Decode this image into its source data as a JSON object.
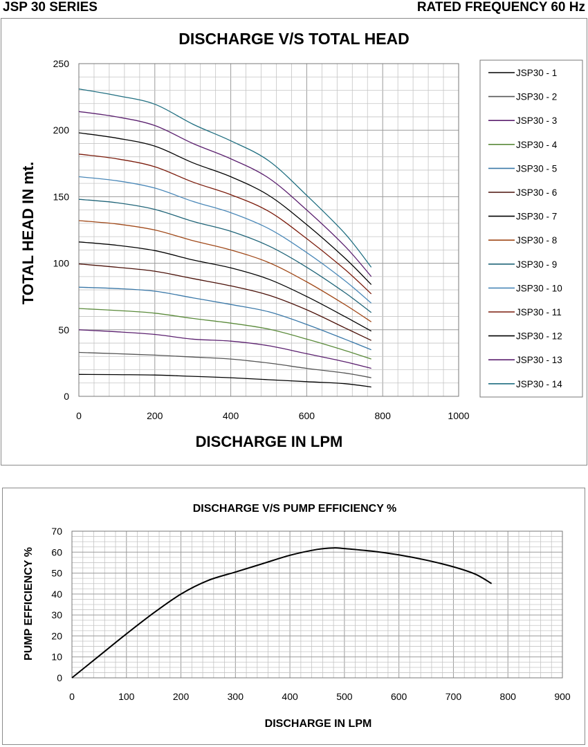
{
  "header": {
    "left": "JSP 30 SERIES",
    "right": "RATED FREQUENCY 60 Hz"
  },
  "chart_data": [
    {
      "type": "line",
      "title": "DISCHARGE V/S TOTAL HEAD",
      "xlabel": "DISCHARGE IN LPM",
      "ylabel": "TOTAL HEAD IN mt.",
      "xlim": [
        0,
        1000
      ],
      "ylim": [
        0,
        250
      ],
      "xticks": [
        0,
        200,
        400,
        600,
        800,
        1000
      ],
      "yticks": [
        0,
        50,
        100,
        150,
        200,
        250
      ],
      "grid": true,
      "legend": "right",
      "x": [
        0,
        100,
        200,
        300,
        400,
        500,
        600,
        700,
        770
      ],
      "series": [
        {
          "name": "JSP30 - 1",
          "color": "#000000",
          "values": [
            16.5,
            16.3,
            16,
            15,
            14,
            12.5,
            11,
            9.5,
            7
          ]
        },
        {
          "name": "JSP30 - 2",
          "color": "#555555",
          "values": [
            33,
            32,
            31,
            29.5,
            28,
            25,
            21,
            17.5,
            14
          ]
        },
        {
          "name": "JSP30 - 3",
          "color": "#5a1f6e",
          "values": [
            50,
            48.5,
            46.5,
            43,
            41.5,
            38,
            32,
            26,
            21
          ]
        },
        {
          "name": "JSP30 - 4",
          "color": "#5a8a3a",
          "values": [
            66,
            64.5,
            62.5,
            58.5,
            55,
            50.5,
            43,
            34.5,
            28
          ]
        },
        {
          "name": "JSP30 - 5",
          "color": "#3a78a8",
          "values": [
            82,
            81,
            79,
            74,
            69,
            63.5,
            54,
            43,
            35
          ]
        },
        {
          "name": "JSP30 - 6",
          "color": "#4a1008",
          "values": [
            99.5,
            97,
            94,
            88.5,
            83,
            76,
            65,
            51.5,
            42
          ]
        },
        {
          "name": "JSP30 - 7",
          "color": "#000000",
          "values": [
            116,
            113.5,
            109.5,
            102.5,
            96.5,
            88,
            75,
            60,
            49
          ]
        },
        {
          "name": "JSP30 - 8",
          "color": "#a04818",
          "values": [
            132,
            129.5,
            125,
            117,
            110,
            100.5,
            86,
            69,
            56
          ]
        },
        {
          "name": "JSP30 - 9",
          "color": "#1f6478",
          "values": [
            148,
            145.5,
            140.5,
            131.5,
            124,
            113,
            97,
            78,
            63
          ]
        },
        {
          "name": "JSP30 - 10",
          "color": "#4a88b8",
          "values": [
            165,
            162,
            156.5,
            146.5,
            138,
            126,
            108,
            87,
            70
          ]
        },
        {
          "name": "JSP30 - 11",
          "color": "#7a1a0a",
          "values": [
            182,
            178.5,
            172.5,
            161,
            151.5,
            139,
            118.5,
            95.5,
            77
          ]
        },
        {
          "name": "JSP30 - 12",
          "color": "#000000",
          "values": [
            198,
            194,
            188,
            175.5,
            165,
            151,
            129,
            104,
            84
          ]
        },
        {
          "name": "JSP30 - 13",
          "color": "#5a1f6e",
          "values": [
            214,
            210,
            203.5,
            190,
            178.5,
            164,
            140,
            113,
            90
          ]
        },
        {
          "name": "JSP30 - 14",
          "color": "#1f6e80",
          "values": [
            231,
            226,
            219.5,
            204.5,
            192,
            177,
            151,
            122.5,
            97
          ]
        }
      ]
    },
    {
      "type": "line",
      "title": "DISCHARGE V/S PUMP EFFICIENCY %",
      "xlabel": "DISCHARGE IN LPM",
      "ylabel": "PUMP EFFICIENCY %",
      "xlim": [
        0,
        900
      ],
      "ylim": [
        0,
        70
      ],
      "xticks": [
        0,
        100,
        200,
        300,
        400,
        500,
        600,
        700,
        800,
        900
      ],
      "yticks": [
        0,
        10,
        20,
        30,
        40,
        50,
        60,
        70
      ],
      "grid": true,
      "legend": "none",
      "x": [
        0,
        50,
        100,
        150,
        200,
        250,
        300,
        350,
        400,
        450,
        480,
        500,
        550,
        600,
        650,
        700,
        740,
        770
      ],
      "series": [
        {
          "values": [
            0,
            10.5,
            21,
            31,
            40,
            46.5,
            50.5,
            54.5,
            58.5,
            61.3,
            62,
            61.7,
            60.5,
            58.7,
            56.2,
            53,
            49.5,
            45
          ],
          "color": "#000000"
        }
      ]
    }
  ]
}
